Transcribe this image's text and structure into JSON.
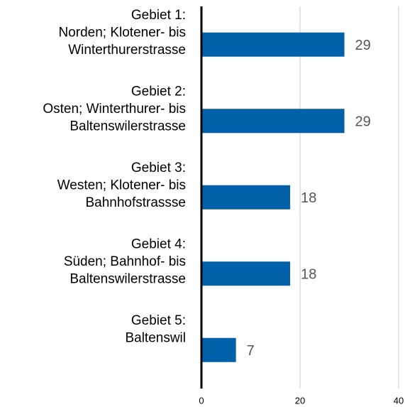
{
  "chart_data": {
    "type": "barh",
    "categories": [
      [
        "Gebiet 1:",
        "Norden; Klotener- bis",
        "Winterthurerstrasse"
      ],
      [
        "Gebiet 2:",
        "Osten; Winterthurer- bis",
        "Baltenswilerstrasse"
      ],
      [
        "Gebiet 3:",
        "Westen; Klotener- bis",
        "Bahnhofstrassse"
      ],
      [
        "Gebiet 4:",
        "Süden; Bahnhof- bis",
        "Baltenswilerstrasse"
      ],
      [
        "Gebiet 5:",
        "Baltenswil"
      ]
    ],
    "values": [
      29,
      29,
      18,
      18,
      7
    ],
    "color": "#0060a8",
    "xlim": [
      0,
      40
    ],
    "xticks": [
      0,
      20,
      40
    ],
    "grid": true
  }
}
